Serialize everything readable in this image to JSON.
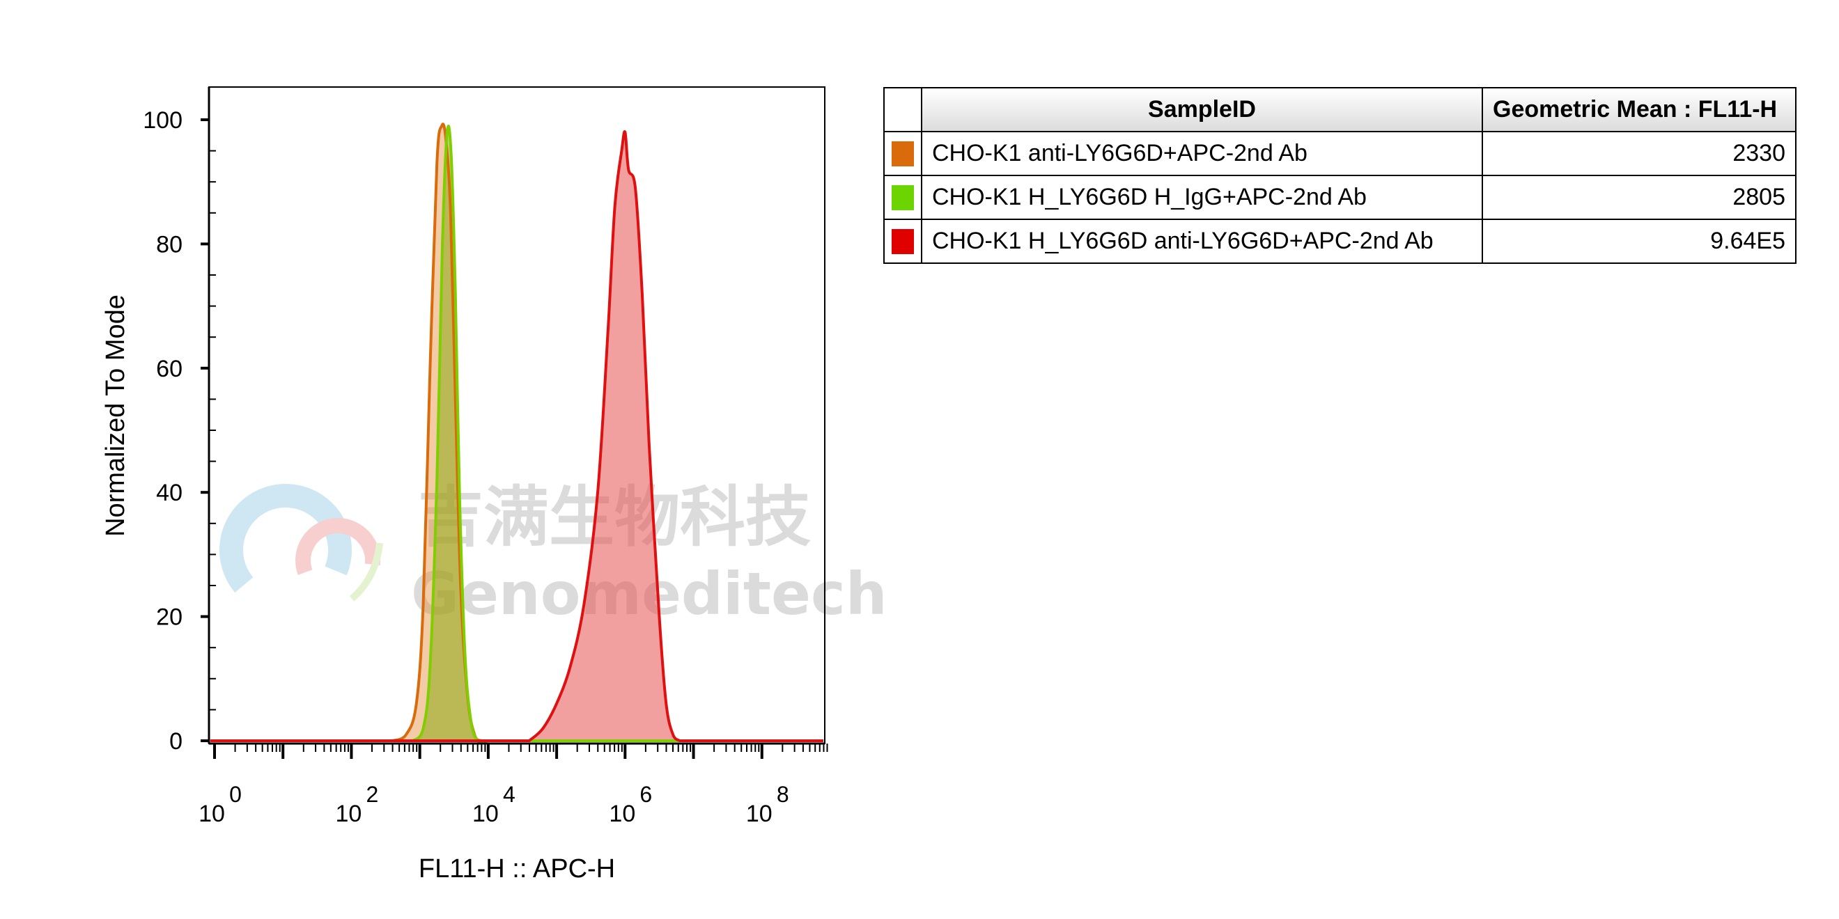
{
  "chart_data": {
    "type": "area",
    "xlabel": "FL11-H :: APC-H",
    "ylabel": "Normalized To Mode",
    "xscale": "log10",
    "xlim": [
      0,
      9
    ],
    "ylim": [
      0,
      100
    ],
    "x_tick_labels": [
      {
        "base": "10",
        "exp": "0",
        "value": 0
      },
      {
        "base": "10",
        "exp": "2",
        "value": 2
      },
      {
        "base": "10",
        "exp": "4",
        "value": 4
      },
      {
        "base": "10",
        "exp": "6",
        "value": 6
      },
      {
        "base": "10",
        "exp": "8",
        "value": 8
      }
    ],
    "y_ticks": [
      0,
      20,
      40,
      60,
      80,
      100
    ],
    "grid": false,
    "legend_placement": "right table",
    "series": [
      {
        "name": "CHO-K1 anti-LY6G6D+APC-2nd Ab",
        "color": "#d96b0b",
        "fill": "rgba(230,140,60,0.45)",
        "x": [
          2.6,
          2.8,
          2.95,
          3.05,
          3.15,
          3.25,
          3.32,
          3.38,
          3.45,
          3.52,
          3.6,
          3.7,
          3.8,
          3.9,
          4.0
        ],
        "y": [
          0,
          1,
          6,
          22,
          60,
          93,
          99,
          97,
          85,
          55,
          24,
          7,
          1,
          0,
          0
        ]
      },
      {
        "name": "CHO-K1 H_LY6G6D H_IgG+APC-2nd Ab",
        "color": "#7fcf00",
        "fill": "rgba(140,170,20,0.55)",
        "x": [
          2.9,
          3.05,
          3.15,
          3.25,
          3.33,
          3.4,
          3.46,
          3.52,
          3.58,
          3.66,
          3.75,
          3.85,
          3.95
        ],
        "y": [
          0,
          2,
          12,
          42,
          80,
          98,
          94,
          72,
          40,
          14,
          3,
          0,
          0
        ]
      },
      {
        "name": "CHO-K1 H_LY6G6D anti-LY6G6D+APC-2nd Ab",
        "color": "#e01010",
        "fill": "rgba(230,80,80,0.55)",
        "x": [
          4.6,
          4.8,
          5.0,
          5.2,
          5.4,
          5.6,
          5.75,
          5.85,
          5.95,
          6.0,
          6.05,
          6.15,
          6.25,
          6.35,
          6.5,
          6.6,
          6.7,
          6.8
        ],
        "y": [
          0,
          2,
          6,
          12,
          22,
          40,
          66,
          86,
          95,
          98,
          92,
          89,
          72,
          48,
          20,
          6,
          1,
          0
        ]
      }
    ],
    "table": {
      "headers": [
        "SampleID",
        "Geometric Mean : FL11-H"
      ],
      "rows": [
        {
          "sample": "CHO-K1 anti-LY6G6D+APC-2nd Ab",
          "value": "2330",
          "color": "#d96b0b"
        },
        {
          "sample": "CHO-K1 H_LY6G6D H_IgG+APC-2nd Ab",
          "value": "2805",
          "color": "#6cd400"
        },
        {
          "sample": "CHO-K1 H_LY6G6D anti-LY6G6D+APC-2nd Ab",
          "value": "9.64E5",
          "color": "#e00000"
        }
      ]
    }
  },
  "watermark": {
    "text_cn": "吉满生物科技",
    "text_en": "Genomeditech"
  }
}
